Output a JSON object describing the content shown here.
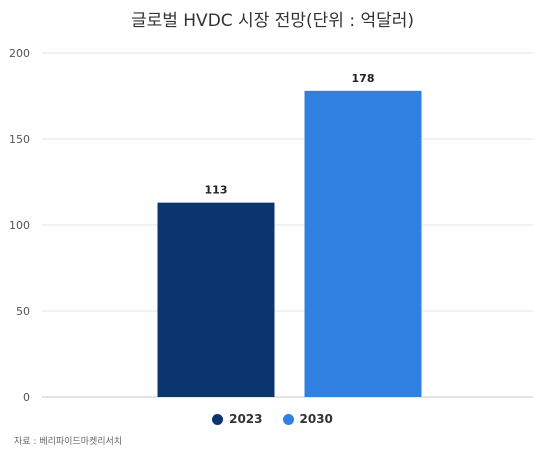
{
  "chart_data": {
    "type": "bar",
    "title": "글로벌 HVDC 시장 전망(단위 : 억달러)",
    "categories": [
      "2023",
      "2030"
    ],
    "values": [
      113,
      178
    ],
    "colors": [
      "#0a356e",
      "#2f80e0"
    ],
    "ylim": [
      0,
      200
    ],
    "yticks": [
      0,
      50,
      100,
      150,
      200
    ],
    "grid": true,
    "legend_position": "bottom",
    "legend": [
      "2023",
      "2030"
    ]
  },
  "source": "자료 : 베리파이드마켓리서치"
}
